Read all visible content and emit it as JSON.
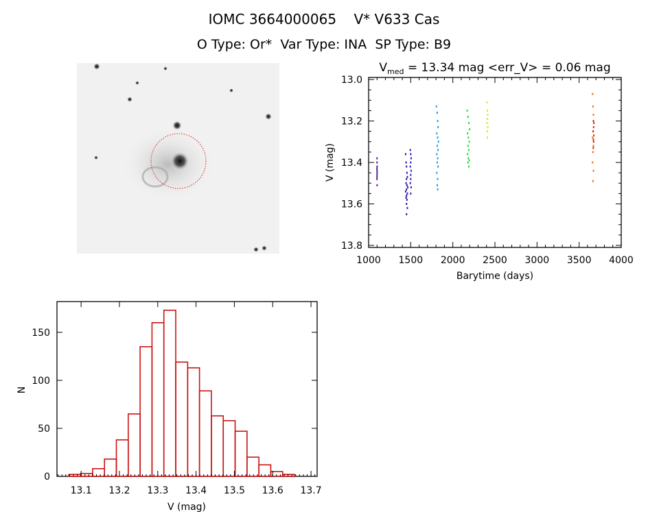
{
  "header": {
    "title_line1": "IOMC 3664000065    V* V633 Cas",
    "title_line2": "O Type: Or*  Var Type: INA  SP Type: B9"
  },
  "image_panel": {
    "description_icon": "sky-image-thumbnail",
    "aperture_color": "#cc2222"
  },
  "chart_data": [
    {
      "type": "scatter",
      "title_prefix": "V",
      "title_subscript": "med",
      "title_rest": " = 13.34 mag <err_V> = 0.06 mag",
      "xlabel": "Barytime (days)",
      "ylabel": "V (mag)",
      "xlim": [
        1000,
        4000
      ],
      "ylim": [
        12.99,
        13.81
      ],
      "y_inverted": true,
      "xticks": [
        "1000",
        "1500",
        "2000",
        "2500",
        "3000",
        "3500",
        "4000"
      ],
      "yticks": [
        "13.0",
        "13.2",
        "13.4",
        "13.6",
        "13.8"
      ],
      "series": [
        {
          "color": "#5a1e8c",
          "x": [
            1100,
            1100,
            1101,
            1099,
            1100,
            1101,
            1100,
            1100,
            1099,
            1101
          ],
          "y": [
            13.38,
            13.4,
            13.42,
            13.43,
            13.44,
            13.45,
            13.46,
            13.47,
            13.48,
            13.51
          ]
        },
        {
          "color": "#3c12a8",
          "x": [
            1440,
            1445,
            1450,
            1455,
            1460,
            1450,
            1445,
            1455,
            1465,
            1450,
            1440,
            1460,
            1450,
            1445,
            1455,
            1450,
            1460,
            1450
          ],
          "y": [
            13.36,
            13.4,
            13.42,
            13.45,
            13.47,
            13.48,
            13.5,
            13.51,
            13.52,
            13.53,
            13.54,
            13.55,
            13.56,
            13.57,
            13.58,
            13.6,
            13.62,
            13.65
          ]
        },
        {
          "color": "#2222c8",
          "x": [
            1495,
            1500,
            1505,
            1500,
            1495,
            1505,
            1500,
            1500,
            1495,
            1505,
            1500
          ],
          "y": [
            13.34,
            13.36,
            13.38,
            13.4,
            13.42,
            13.44,
            13.46,
            13.48,
            13.5,
            13.52,
            13.55
          ]
        },
        {
          "color": "#1e9ee0",
          "x": [
            1805,
            1815,
            1820,
            1825,
            1810,
            1820,
            1830,
            1815,
            1825,
            1810,
            1820,
            1815,
            1825,
            1810,
            1820,
            1815,
            1820
          ],
          "y": [
            13.13,
            13.16,
            13.2,
            13.23,
            13.26,
            13.28,
            13.3,
            13.32,
            13.34,
            13.36,
            13.38,
            13.4,
            13.42,
            13.45,
            13.48,
            13.51,
            13.53
          ]
        },
        {
          "color": "#22e040",
          "x": [
            2170,
            2180,
            2190,
            2200,
            2175,
            2185,
            2195,
            2180,
            2190,
            2175,
            2185,
            2195,
            2180,
            2190
          ],
          "y": [
            13.15,
            13.18,
            13.21,
            13.24,
            13.26,
            13.28,
            13.3,
            13.32,
            13.34,
            13.36,
            13.38,
            13.39,
            13.4,
            13.42
          ]
        },
        {
          "color": "#c8f020",
          "x": [
            2405,
            2410,
            2415,
            2410,
            2405,
            2415,
            2410,
            2410
          ],
          "y": [
            13.11,
            13.15,
            13.17,
            13.19,
            13.21,
            13.23,
            13.25,
            13.28
          ]
        },
        {
          "color": "#f07010",
          "x": [
            3660,
            3665,
            3670,
            3665,
            3660,
            3670,
            3665,
            3660,
            3670,
            3665
          ],
          "y": [
            13.07,
            13.13,
            13.17,
            13.25,
            13.28,
            13.32,
            13.35,
            13.4,
            13.44,
            13.49
          ]
        },
        {
          "color": "#d82a10",
          "x": [
            3670,
            3675,
            3672,
            3668,
            3675,
            3670,
            3672,
            3668
          ],
          "y": [
            13.2,
            13.21,
            13.23,
            13.25,
            13.27,
            13.29,
            13.3,
            13.33
          ]
        }
      ]
    },
    {
      "type": "bar",
      "subtype": "histogram",
      "xlabel": "V (mag)",
      "ylabel": "N",
      "xlim": [
        13.037,
        13.716
      ],
      "ylim": [
        0,
        182
      ],
      "xticks": [
        "13.1",
        "13.2",
        "13.3",
        "13.4",
        "13.5",
        "13.6",
        "13.7"
      ],
      "yticks": [
        "0",
        "50",
        "100",
        "150"
      ],
      "bin_start": 13.068,
      "bin_width": 0.031,
      "values": [
        2,
        3,
        8,
        18,
        38,
        65,
        135,
        160,
        173,
        119,
        113,
        89,
        63,
        58,
        47,
        20,
        12,
        5,
        2
      ],
      "color": "#cc1111"
    }
  ]
}
